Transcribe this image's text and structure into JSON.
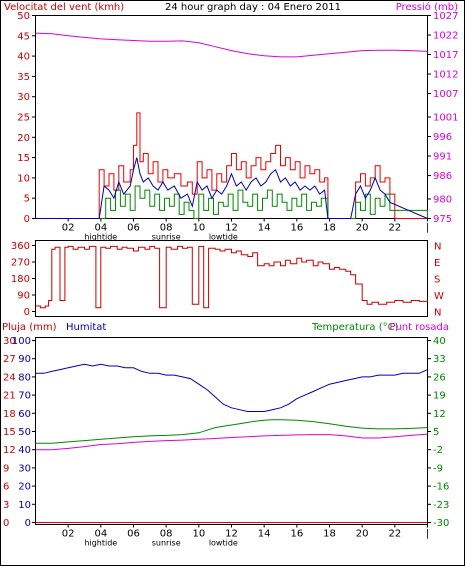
{
  "header": {
    "left_title": "Velocitat del vent (kmh)",
    "center_title": "24 hour graph day : 04 Enero 2011",
    "right_title": "Pressió (mb)"
  },
  "colors": {
    "red": "#ee0000",
    "blue": "#0000bb",
    "green": "#008800",
    "magenta": "#dd00dd",
    "dark_red": "#cc0000",
    "axis": "#000000"
  },
  "x_axis": {
    "tick_labels": [
      "02",
      "04",
      "06",
      "08",
      "10",
      "12",
      "14",
      "16",
      "18",
      "20",
      "22",
      "|"
    ],
    "tick_hours": [
      2,
      4,
      6,
      8,
      10,
      12,
      14,
      16,
      18,
      20,
      22,
      24
    ],
    "events": [
      {
        "label": "hightide",
        "hour": 4
      },
      {
        "label": "sunrise",
        "hour": 8
      },
      {
        "label": "lowtide",
        "hour": 11.5
      }
    ]
  },
  "chart_data": [
    {
      "type": "line",
      "panel": "wind-pressure",
      "title": "Velocitat del vent (kmh)",
      "right_title": "Pressió (mb)",
      "ylim": [
        0,
        50
      ],
      "y_ticks": [
        0,
        5,
        10,
        15,
        20,
        25,
        30,
        35,
        40,
        45,
        50
      ],
      "y2lim": [
        975,
        1027
      ],
      "y2_ticks": [
        975,
        980,
        986,
        991,
        996,
        1001,
        1007,
        1012,
        1017,
        1022,
        1027
      ],
      "xlim": [
        0,
        24
      ],
      "series": [
        {
          "name": "Velocitat del vent (kmh)",
          "axis": "left",
          "color": "#ee0000",
          "x": [
            0,
            3.8,
            3.9,
            4.2,
            4.5,
            4.8,
            5.1,
            5.4,
            5.8,
            6.0,
            6.2,
            6.4,
            6.6,
            6.9,
            7.2,
            7.5,
            7.8,
            8.1,
            8.5,
            8.9,
            9.3,
            9.6,
            9.9,
            10.2,
            10.5,
            10.8,
            11.1,
            11.4,
            11.7,
            12.0,
            12.3,
            12.6,
            12.9,
            13.2,
            13.5,
            13.8,
            14.1,
            14.4,
            14.7,
            15.0,
            15.3,
            15.6,
            15.9,
            16.2,
            16.5,
            16.8,
            17.1,
            17.4,
            17.7,
            17.9,
            18.2,
            19.3,
            19.6,
            19.9,
            20.2,
            20.5,
            20.8,
            21.1,
            21.4,
            21.7,
            22.0,
            24
          ],
          "y": [
            0,
            0,
            12,
            8,
            11,
            7,
            13,
            9,
            12,
            18,
            26,
            14,
            16,
            11,
            14,
            9,
            12,
            10,
            11,
            8,
            9,
            6,
            14,
            10,
            12,
            7,
            11,
            9,
            13,
            16,
            12,
            14,
            10,
            13,
            15,
            12,
            14,
            16,
            18,
            13,
            15,
            12,
            14,
            10,
            13,
            11,
            12,
            9,
            10,
            0,
            0,
            0,
            9,
            11,
            8,
            10,
            13,
            9,
            10,
            6,
            0,
            0
          ]
        },
        {
          "name": "wind average",
          "axis": "left",
          "color": "#0000bb",
          "x": [
            0,
            3.9,
            4.2,
            4.5,
            4.8,
            5.1,
            5.4,
            5.8,
            6.0,
            6.2,
            6.4,
            6.6,
            6.9,
            7.2,
            7.5,
            7.8,
            8.1,
            8.5,
            8.9,
            9.3,
            9.6,
            9.9,
            10.2,
            10.5,
            10.8,
            11.1,
            11.4,
            11.7,
            12.0,
            12.3,
            12.6,
            12.9,
            13.2,
            13.5,
            13.8,
            14.1,
            14.4,
            14.7,
            15.0,
            15.3,
            15.6,
            15.9,
            16.2,
            16.5,
            16.8,
            17.1,
            17.4,
            17.7,
            17.9,
            19.3,
            19.6,
            19.9,
            20.2,
            20.5,
            20.8,
            21.1,
            21.4,
            21.7,
            24
          ],
          "y": [
            0,
            0,
            8,
            7,
            5,
            9,
            6,
            8,
            12,
            15,
            11,
            9,
            10,
            8,
            7,
            9,
            7,
            8,
            5,
            6,
            3,
            9,
            7,
            8,
            5,
            7,
            6,
            8,
            11,
            8,
            9,
            7,
            9,
            10,
            8,
            9,
            11,
            12,
            9,
            10,
            8,
            9,
            7,
            8,
            7,
            8,
            6,
            7,
            0,
            0,
            6,
            8,
            5,
            7,
            10,
            7,
            6,
            4,
            0
          ]
        },
        {
          "name": "wind minimum",
          "axis": "left",
          "color": "#008800",
          "x": [
            0,
            3.9,
            4.3,
            4.6,
            4.9,
            5.2,
            5.5,
            5.8,
            6.1,
            6.4,
            6.7,
            7.0,
            7.3,
            7.6,
            7.9,
            8.2,
            8.5,
            8.8,
            9.1,
            9.4,
            9.7,
            10.0,
            10.3,
            10.6,
            10.9,
            11.2,
            11.5,
            11.8,
            12.1,
            12.4,
            12.7,
            13.0,
            13.3,
            13.6,
            13.9,
            14.2,
            14.5,
            14.8,
            15.1,
            15.4,
            15.7,
            16.0,
            16.3,
            16.6,
            16.9,
            17.2,
            17.5,
            17.9,
            19.3,
            19.6,
            19.9,
            20.2,
            20.5,
            20.8,
            21.1,
            21.4,
            21.7,
            24
          ],
          "y": [
            0,
            0,
            5,
            2,
            7,
            3,
            6,
            2,
            8,
            5,
            7,
            3,
            6,
            2,
            5,
            3,
            6,
            1,
            4,
            2,
            0,
            6,
            2,
            5,
            1,
            4,
            3,
            6,
            2,
            7,
            4,
            3,
            6,
            2,
            5,
            7,
            3,
            6,
            4,
            2,
            5,
            3,
            6,
            2,
            4,
            3,
            5,
            0,
            0,
            4,
            2,
            6,
            1,
            5,
            3,
            6,
            2,
            0
          ]
        },
        {
          "name": "Pressió (mb)",
          "axis": "right",
          "color": "#dd00dd",
          "x": [
            0,
            1,
            2,
            3,
            4,
            5,
            6,
            7,
            8,
            9,
            10,
            11,
            12,
            13,
            14,
            15,
            16,
            17,
            18,
            19,
            20,
            21,
            22,
            23,
            24
          ],
          "y": [
            1022.5,
            1022.3,
            1021.8,
            1021.4,
            1021.0,
            1020.8,
            1020.6,
            1020.4,
            1020.4,
            1020.5,
            1020.0,
            1019.0,
            1018.0,
            1017.2,
            1016.7,
            1016.4,
            1016.4,
            1016.8,
            1017.2,
            1017.6,
            1018.0,
            1018.1,
            1018.1,
            1018.0,
            1017.8
          ]
        }
      ]
    },
    {
      "type": "line",
      "panel": "wind-direction",
      "ylim": [
        0,
        360
      ],
      "y_ticks": [
        0,
        90,
        180,
        270,
        360
      ],
      "y_tick_labels": [
        "0",
        "90",
        "180",
        "270",
        "360"
      ],
      "right_labels": [
        "N",
        "W",
        "S",
        "E",
        "N"
      ],
      "xlim": [
        0,
        24
      ],
      "series": [
        {
          "name": "wind direction",
          "color": "#cc0000",
          "x": [
            0,
            0.3,
            0.6,
            0.8,
            1.0,
            1.2,
            1.5,
            1.8,
            2.0,
            2.3,
            2.6,
            3.0,
            3.3,
            3.7,
            4.0,
            4.3,
            4.6,
            5.0,
            5.3,
            5.6,
            6.0,
            6.3,
            6.7,
            7.0,
            7.3,
            7.6,
            8.0,
            8.3,
            8.7,
            9.0,
            9.3,
            9.6,
            10.0,
            10.3,
            10.6,
            11.0,
            11.3,
            11.6,
            12.0,
            12.3,
            12.6,
            13.0,
            13.3,
            13.6,
            14.0,
            14.3,
            14.6,
            15.0,
            15.3,
            15.6,
            16.0,
            16.3,
            16.6,
            17.0,
            17.3,
            17.6,
            18.0,
            18.3,
            18.6,
            19.0,
            19.3,
            19.6,
            20.0,
            20.3,
            20.6,
            21.0,
            21.5,
            22.0,
            22.5,
            23.0,
            23.5,
            24
          ],
          "y": [
            30,
            20,
            30,
            60,
            340,
            350,
            60,
            350,
            355,
            340,
            350,
            340,
            355,
            20,
            350,
            345,
            355,
            340,
            350,
            345,
            330,
            350,
            340,
            355,
            345,
            20,
            350,
            340,
            355,
            345,
            350,
            40,
            355,
            20,
            345,
            340,
            330,
            340,
            320,
            330,
            310,
            300,
            320,
            250,
            260,
            250,
            270,
            250,
            280,
            260,
            290,
            270,
            280,
            250,
            270,
            260,
            230,
            240,
            230,
            220,
            200,
            150,
            60,
            40,
            50,
            40,
            50,
            60,
            50,
            60,
            55,
            60
          ]
        }
      ]
    },
    {
      "type": "line",
      "panel": "rain-humidity-temperature",
      "left_title": "Pluja (mm)",
      "humidity_title": "Humitat",
      "right_title": "Temperatura (°C)",
      "dewpoint_title": "Punt rosada",
      "ylim_rain": [
        0,
        30
      ],
      "rain_ticks": [
        0,
        3,
        6,
        9,
        12,
        15,
        18,
        21,
        24,
        27,
        30
      ],
      "ylim_humidity": [
        0,
        100
      ],
      "humidity_ticks": [
        0,
        10,
        20,
        30,
        40,
        50,
        60,
        70,
        80,
        90,
        100
      ],
      "ylim_temperature": [
        -30,
        40
      ],
      "temperature_ticks": [
        -30,
        -23,
        -16,
        -9,
        -2,
        5,
        12,
        19,
        26,
        33,
        40
      ],
      "xlim": [
        0,
        24
      ],
      "series": [
        {
          "name": "Humitat",
          "axis": "humidity",
          "color": "#0000bb",
          "x": [
            0,
            0.5,
            1,
            1.5,
            2,
            2.5,
            3,
            3.5,
            4,
            4.5,
            5,
            5.5,
            6,
            6.5,
            7,
            7.5,
            8,
            8.5,
            9,
            9.5,
            10,
            10.5,
            11,
            11.5,
            12,
            12.5,
            13,
            13.5,
            14,
            14.5,
            15,
            15.5,
            16,
            16.5,
            17,
            17.5,
            18,
            18.5,
            19,
            19.5,
            20,
            20.5,
            21,
            21.5,
            22,
            22.5,
            23,
            23.5,
            24
          ],
          "y": [
            82,
            82,
            83,
            84,
            85,
            86,
            87,
            86,
            87,
            86,
            86,
            85,
            85,
            83,
            82,
            82,
            81,
            81,
            80,
            79,
            76,
            73,
            69,
            65,
            63,
            62,
            61,
            61,
            61,
            62,
            63,
            65,
            68,
            70,
            72,
            74,
            76,
            77,
            78,
            79,
            80,
            80,
            81,
            81,
            81,
            82,
            82,
            82,
            84
          ]
        },
        {
          "name": "Temperatura (°C)",
          "axis": "temperature",
          "color": "#008800",
          "x": [
            0,
            1,
            2,
            3,
            4,
            5,
            6,
            7,
            8,
            9,
            10,
            10.5,
            11,
            11.5,
            12,
            12.5,
            13,
            13.5,
            14,
            14.5,
            15,
            16,
            17,
            18,
            19,
            20,
            21,
            22,
            23,
            24
          ],
          "y": [
            0.5,
            0.5,
            1.0,
            1.5,
            2.0,
            2.5,
            3.0,
            3.3,
            3.5,
            3.8,
            4.5,
            5.5,
            6.5,
            7.0,
            7.5,
            8.0,
            8.5,
            9.0,
            9.3,
            9.5,
            9.5,
            9.3,
            8.8,
            8.0,
            7.0,
            6.3,
            6.0,
            6.0,
            6.2,
            6.5
          ]
        },
        {
          "name": "Punt rosada",
          "axis": "temperature",
          "color": "#dd00dd",
          "x": [
            0,
            1,
            2,
            3,
            4,
            5,
            6,
            7,
            8,
            9,
            10,
            11,
            12,
            13,
            14,
            15,
            16,
            17,
            18,
            19,
            20,
            21,
            22,
            23,
            24
          ],
          "y": [
            -2.0,
            -2.0,
            -1.5,
            -0.8,
            0.0,
            0.3,
            0.8,
            1.2,
            1.5,
            1.7,
            2.0,
            2.3,
            2.7,
            3.0,
            3.3,
            3.5,
            3.7,
            3.8,
            3.8,
            3.3,
            2.5,
            2.5,
            3.0,
            3.5,
            4.0
          ]
        },
        {
          "name": "Pluja (mm)",
          "axis": "rain",
          "color": "#ee0000",
          "x": [
            0,
            24
          ],
          "y": [
            0,
            0
          ]
        }
      ]
    }
  ]
}
